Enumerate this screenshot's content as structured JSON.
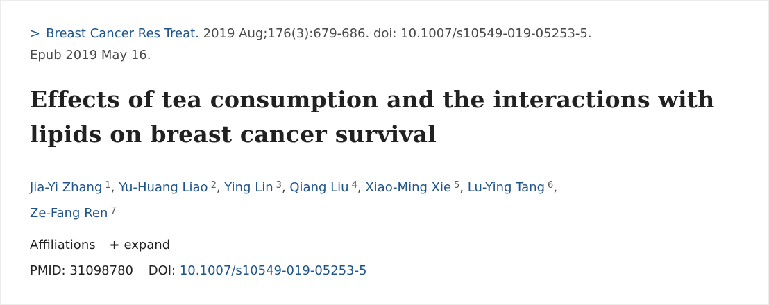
{
  "citation": {
    "chevron": ">",
    "journal_link": "Breast Cancer Res Treat.",
    "details": " 2019 Aug;176(3):679-686. doi: 10.1007/s10549-019-05253-5.",
    "epub": "Epub 2019 May 16."
  },
  "article": {
    "title": "Effects of tea consumption and the interactions with lipids on breast cancer survival"
  },
  "authors": [
    {
      "name": "Jia-Yi Zhang",
      "affiliation": "1"
    },
    {
      "name": "Yu-Huang Liao",
      "affiliation": "2"
    },
    {
      "name": "Ying Lin",
      "affiliation": "3"
    },
    {
      "name": "Qiang Liu",
      "affiliation": "4"
    },
    {
      "name": "Xiao-Ming Xie",
      "affiliation": "5"
    },
    {
      "name": "Lu-Ying Tang",
      "affiliation": "6"
    },
    {
      "name": "Ze-Fang Ren",
      "affiliation": "7"
    }
  ],
  "affiliations": {
    "label": "Affiliations",
    "expand_icon": "+",
    "expand_label": "expand"
  },
  "identifiers": {
    "pmid_label": "PMID:",
    "pmid": "31098780",
    "doi_label": "DOI:",
    "doi": "10.1007/s10549-019-05253-5"
  },
  "colors": {
    "link": "#20558a",
    "text": "#212121"
  }
}
